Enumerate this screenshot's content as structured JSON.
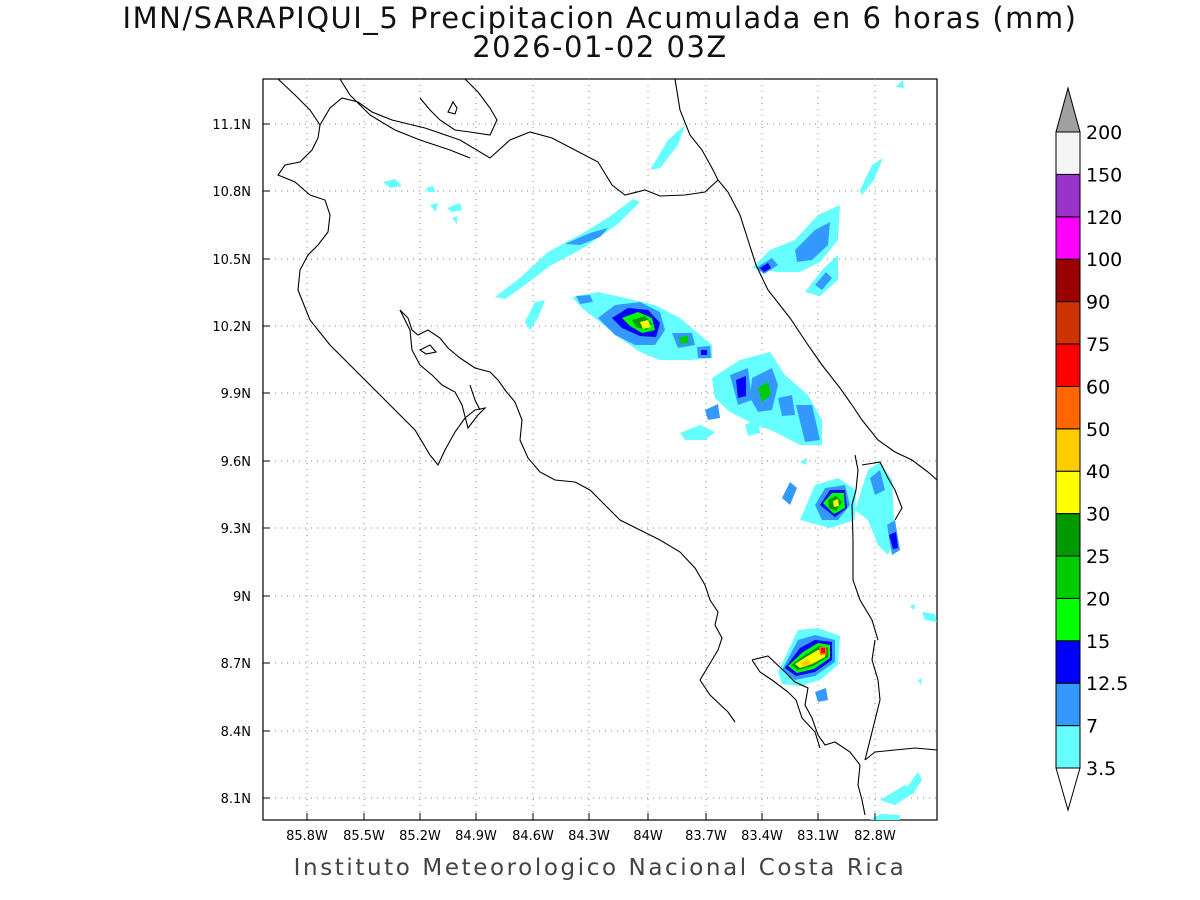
{
  "title": {
    "line1": "IMN/SARAPIQUI_5 Precipitacion Acumulada en 6 horas (mm)",
    "line2": "2026-01-02 03Z"
  },
  "footer": "Instituto Meteorologico Nacional Costa Rica",
  "axes": {
    "x_ticks": [
      "85.8W",
      "85.5W",
      "85.2W",
      "84.9W",
      "84.6W",
      "84.3W",
      "84W",
      "83.7W",
      "83.4W",
      "83.1W",
      "82.8W"
    ],
    "y_ticks": [
      "11.1N",
      "10.8N",
      "10.5N",
      "10.2N",
      "9.9N",
      "9.6N",
      "9.3N",
      "9N",
      "8.7N",
      "8.4N",
      "8.1N"
    ],
    "grid": "dotted"
  },
  "legend": {
    "labels": [
      "3.5",
      "7",
      "12.5",
      "15",
      "20",
      "25",
      "30",
      "40",
      "50",
      "60",
      "75",
      "90",
      "100",
      "120",
      "150",
      "200"
    ],
    "colors": [
      "#ffffff",
      "#66ffff",
      "#3399ff",
      "#0000ff",
      "#00ff00",
      "#00cc00",
      "#009900",
      "#ffff00",
      "#ffcc00",
      "#ff6600",
      "#ff0000",
      "#cc3300",
      "#990000",
      "#ff00ff",
      "#9933cc",
      "#f5f5f5"
    ],
    "over_color": "#a0a0a0",
    "under_color": "#ffffff"
  },
  "precip_cells": [
    {
      "lon": -84.4,
      "lat": 10.55,
      "value": 3.5
    },
    {
      "lon": -84.1,
      "lat": 10.25,
      "value": 30
    },
    {
      "lon": -83.85,
      "lat": 10.13,
      "value": 15
    },
    {
      "lon": -83.4,
      "lat": 9.95,
      "value": 25
    },
    {
      "lon": -83.25,
      "lat": 9.8,
      "value": 12.5
    },
    {
      "lon": -83.05,
      "lat": 9.4,
      "value": 30
    },
    {
      "lon": -82.9,
      "lat": 9.25,
      "value": 12.5
    },
    {
      "lon": -83.05,
      "lat": 8.75,
      "value": 60
    },
    {
      "lon": -83.15,
      "lat": 10.55,
      "value": 7
    },
    {
      "lon": -83.4,
      "lat": 10.47,
      "value": 12.5
    }
  ]
}
